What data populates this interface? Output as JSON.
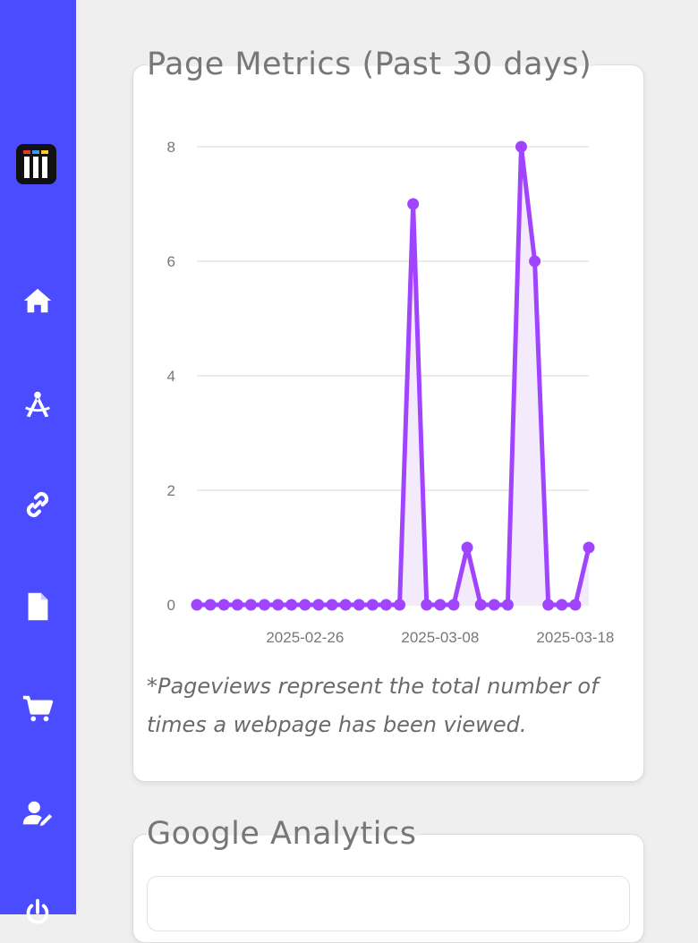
{
  "sidebar": {
    "items": [
      {
        "name": "logo",
        "icon": "app-logo-icon"
      },
      {
        "name": "home",
        "icon": "home-icon"
      },
      {
        "name": "design",
        "icon": "compass-drafting-icon"
      },
      {
        "name": "links",
        "icon": "link-icon"
      },
      {
        "name": "pages",
        "icon": "file-icon"
      },
      {
        "name": "shop",
        "icon": "cart-icon"
      },
      {
        "name": "account",
        "icon": "user-edit-icon"
      },
      {
        "name": "logout",
        "icon": "power-icon"
      }
    ],
    "background": "#4b4cff"
  },
  "page_metrics": {
    "title": "Page Metrics (Past 30 days)",
    "note": "*Pageviews represent the total number of times a webpage has been viewed."
  },
  "google_analytics": {
    "title": "Google Analytics"
  },
  "chart_data": {
    "type": "area",
    "line_color": "#a044ff",
    "fill_color": "#f3ebfc",
    "x_ticks": [
      "2025-02-26",
      "2025-03-08",
      "2025-03-18"
    ],
    "y_ticks": [
      0,
      2,
      4,
      6,
      8
    ],
    "ylim": [
      0,
      8
    ],
    "grid": true,
    "series": [
      {
        "values": [
          0,
          0,
          0,
          0,
          0,
          0,
          0,
          0,
          0,
          0,
          0,
          0,
          0,
          0,
          0,
          0,
          7,
          0,
          0,
          0,
          1,
          0,
          0,
          0,
          8,
          6,
          0,
          0,
          0,
          1
        ]
      }
    ]
  }
}
